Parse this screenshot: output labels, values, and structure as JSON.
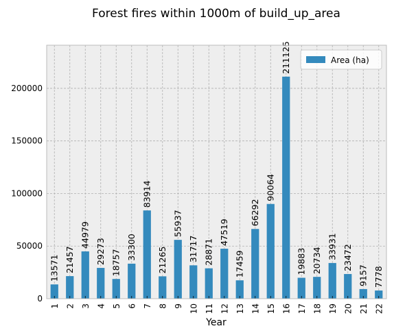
{
  "chart_data": {
    "type": "bar",
    "title": "Forest fires within 1000m of build_up_area",
    "xlabel": "Year",
    "ylabel": "",
    "categories": [
      "1",
      "2",
      "3",
      "4",
      "5",
      "6",
      "7",
      "8",
      "9",
      "10",
      "11",
      "12",
      "13",
      "14",
      "15",
      "16",
      "17",
      "18",
      "19",
      "20",
      "21",
      "22"
    ],
    "series": [
      {
        "name": "Area (ha)",
        "values": [
          13571,
          21457,
          44979,
          29273,
          18757,
          33300,
          83914,
          21265,
          55937,
          31717,
          28871,
          47519,
          17459,
          66292,
          90064,
          211125,
          19883,
          20734,
          33931,
          23472,
          9157,
          7778
        ],
        "color": "#348abd"
      }
    ],
    "ylim": [
      0,
      241000
    ],
    "yticks": [
      0,
      50000,
      100000,
      150000,
      200000
    ],
    "grid": true,
    "legend_position": "top-right",
    "colors": {
      "plot_bg": "#eeeeee",
      "spine": "#bcbcbc",
      "grid": "#b0b0b0"
    }
  }
}
